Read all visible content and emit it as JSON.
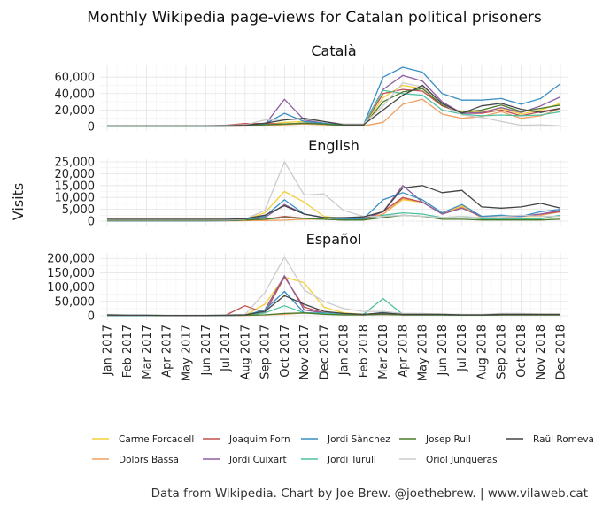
{
  "chart_data": {
    "type": "line",
    "title": "Monthly Wikipedia page-views for Catalan political prisoners",
    "ylabel": "Visits",
    "xlabel": "",
    "caption": "Data from Wikipedia. Chart by Joe Brew. @joethebrew. | www.vilaweb.cat",
    "grid": true,
    "legend_position": "bottom",
    "x": [
      "Jan 2017",
      "Feb 2017",
      "Mar 2017",
      "Apr 2017",
      "May 2017",
      "Jun 2017",
      "Jul 2017",
      "Aug 2017",
      "Sep 2017",
      "Oct 2017",
      "Nov 2017",
      "Dec 2017",
      "Jan 2018",
      "Feb 2018",
      "Mar 2018",
      "Apr 2018",
      "May 2018",
      "Jun 2018",
      "Jul 2018",
      "Aug 2018",
      "Sep 2018",
      "Oct 2018",
      "Nov 2018",
      "Dec 2018"
    ],
    "legend": [
      {
        "name": "Carme Forcadell",
        "color": "#f2d13a"
      },
      {
        "name": "Dolors Bassa",
        "color": "#f0a060"
      },
      {
        "name": "Joaquim Forn",
        "color": "#c0504d"
      },
      {
        "name": "Jordi Cuixart",
        "color": "#8e5ea2"
      },
      {
        "name": "Jordi Sànchez",
        "color": "#3a8fc4"
      },
      {
        "name": "Jordi Turull",
        "color": "#4fc1a0"
      },
      {
        "name": "Josep Rull",
        "color": "#4a7a2a"
      },
      {
        "name": "Oriol Junqueras",
        "color": "#cccccc"
      },
      {
        "name": "Raül Romeva",
        "color": "#444444"
      }
    ],
    "panels": [
      {
        "title": "Català",
        "ylim": [
          0,
          72000
        ],
        "yticks": [
          0,
          20000,
          40000,
          60000
        ],
        "ytick_labels": [
          "0",
          "20,000",
          "40,000",
          "60,000"
        ],
        "series": [
          {
            "name": "Carme Forcadell",
            "values": [
              500,
              500,
              500,
              500,
              500,
              500,
              600,
              800,
              2000,
              5000,
              6000,
              3000,
              1000,
              1000,
              35000,
              50000,
              46000,
              25000,
              18000,
              18000,
              22000,
              15000,
              20000,
              28000
            ]
          },
          {
            "name": "Dolors Bassa",
            "values": [
              200,
              200,
              200,
              200,
              200,
              200,
              300,
              500,
              1000,
              2000,
              3000,
              2000,
              800,
              800,
              5000,
              27000,
              33000,
              15000,
              10000,
              12000,
              18000,
              10000,
              13000,
              22000
            ]
          },
          {
            "name": "Joaquim Forn",
            "values": [
              500,
              500,
              500,
              500,
              500,
              500,
              1500,
              3500,
              3500,
              3000,
              4000,
              3000,
              1000,
              1000,
              40000,
              45000,
              43000,
              25000,
              16000,
              16000,
              20000,
              13000,
              18000,
              22000
            ]
          },
          {
            "name": "Jordi Cuixart",
            "values": [
              300,
              300,
              300,
              300,
              300,
              300,
              400,
              800,
              2000,
              33000,
              8000,
              4000,
              1500,
              1500,
              45000,
              62000,
              55000,
              30000,
              16000,
              17000,
              23000,
              17000,
              25000,
              36000
            ]
          },
          {
            "name": "Jordi Sànchez",
            "values": [
              300,
              300,
              300,
              300,
              300,
              300,
              500,
              1000,
              3000,
              16000,
              6000,
              4000,
              1500,
              1500,
              60000,
              72000,
              66000,
              40000,
              32000,
              32000,
              34000,
              27000,
              34000,
              52000
            ]
          },
          {
            "name": "Jordi Turull",
            "values": [
              400,
              400,
              400,
              400,
              400,
              400,
              500,
              800,
              2000,
              3000,
              4000,
              3000,
              1000,
              1000,
              44000,
              40000,
              38000,
              20000,
              15000,
              13000,
              14000,
              13000,
              14000,
              18000
            ]
          },
          {
            "name": "Josep Rull",
            "values": [
              400,
              400,
              400,
              400,
              400,
              400,
              500,
              800,
              2000,
              3000,
              4000,
              3000,
              1000,
              1000,
              30000,
              42000,
              46000,
              26000,
              17000,
              20000,
              26000,
              18000,
              22000,
              26000
            ]
          },
          {
            "name": "Oriol Junqueras",
            "values": [
              1000,
              1000,
              1000,
              1000,
              1000,
              1000,
              1500,
              2000,
              8000,
              9000,
              9000,
              6000,
              3000,
              3000,
              25000,
              53000,
              48000,
              28000,
              14000,
              11000,
              6000,
              1500,
              2000,
              800
            ]
          },
          {
            "name": "Raül Romeva",
            "values": [
              800,
              800,
              800,
              800,
              800,
              800,
              1000,
              1500,
              4000,
              8000,
              10000,
              6000,
              2000,
              2000,
              20000,
              38000,
              50000,
              28000,
              16000,
              25000,
              28000,
              21000,
              17000,
              22000
            ]
          }
        ]
      },
      {
        "title": "English",
        "ylim": [
          0,
          25000
        ],
        "yticks": [
          0,
          5000,
          10000,
          15000,
          20000,
          25000
        ],
        "ytick_labels": [
          "0",
          "5,000",
          "10,000",
          "15,000",
          "20,000",
          "25,000"
        ],
        "series": [
          {
            "name": "Carme Forcadell",
            "values": [
              300,
              300,
              300,
              300,
              300,
              300,
              400,
              600,
              3500,
              12500,
              8000,
              2000,
              1000,
              800,
              3000,
              9000,
              8000,
              3000,
              6500,
              2000,
              2000,
              2000,
              2000,
              2000
            ]
          },
          {
            "name": "Dolors Bassa",
            "values": [
              100,
              100,
              100,
              100,
              100,
              100,
              100,
              200,
              300,
              400,
              800,
              800,
              500,
              500,
              3000,
              9500,
              8000,
              3000,
              6000,
              1500,
              2000,
              2000,
              2500,
              4000
            ]
          },
          {
            "name": "Joaquim Forn",
            "values": [
              200,
              200,
              200,
              200,
              200,
              200,
              300,
              500,
              800,
              2000,
              1200,
              800,
              500,
              500,
              4000,
              10000,
              8000,
              3000,
              5500,
              2000,
              2000,
              2000,
              3000,
              4000
            ]
          },
          {
            "name": "Jordi Cuixart",
            "values": [
              100,
              100,
              100,
              100,
              100,
              100,
              200,
              500,
              1500,
              7000,
              3000,
              1500,
              1000,
              1000,
              4000,
              15000,
              8000,
              3000,
              5500,
              2000,
              2000,
              2000,
              3000,
              4500
            ]
          },
          {
            "name": "Jordi Sànchez",
            "values": [
              100,
              100,
              100,
              100,
              100,
              100,
              200,
              500,
              2000,
              9000,
              3000,
              1500,
              1000,
              1000,
              9000,
              12000,
              9000,
              3500,
              7000,
              2000,
              2500,
              2000,
              4000,
              5000
            ]
          },
          {
            "name": "Jordi Turull",
            "values": [
              200,
              200,
              200,
              200,
              200,
              200,
              300,
              500,
              800,
              1500,
              1200,
              800,
              500,
              500,
              2500,
              3500,
              3000,
              1500,
              2000,
              1000,
              1000,
              1000,
              1000,
              2500
            ]
          },
          {
            "name": "Josep Rull",
            "values": [
              200,
              200,
              200,
              200,
              200,
              200,
              300,
              500,
              800,
              1500,
              1200,
              800,
              500,
              500,
              1500,
              2500,
              2000,
              800,
              800,
              500,
              500,
              500,
              500,
              800
            ]
          },
          {
            "name": "Oriol Junqueras",
            "values": [
              500,
              500,
              500,
              500,
              500,
              500,
              500,
              800,
              4500,
              25000,
              11000,
              11500,
              4500,
              2000,
              2000,
              2500,
              2000,
              1500,
              2000,
              1500,
              2000,
              2500,
              2000,
              2000
            ]
          },
          {
            "name": "Raül Romeva",
            "values": [
              800,
              800,
              800,
              800,
              800,
              800,
              800,
              1000,
              2500,
              6500,
              3000,
              1500,
              1500,
              1800,
              4000,
              14000,
              15000,
              12000,
              13000,
              6000,
              5500,
              6000,
              7500,
              5500
            ]
          }
        ]
      },
      {
        "title": "Español",
        "ylim": [
          0,
          210000
        ],
        "yticks": [
          0,
          50000,
          100000,
          150000,
          200000
        ],
        "ytick_labels": [
          "0",
          "50,000",
          "100,000",
          "150,000",
          "200,000"
        ],
        "series": [
          {
            "name": "Carme Forcadell",
            "values": [
              500,
              500,
              500,
              500,
              500,
              500,
              1000,
              2000,
              40000,
              135000,
              115000,
              30000,
              10000,
              5000,
              5000,
              3000,
              3000,
              3000,
              2000,
              2000,
              3000,
              3000,
              3000,
              3000
            ]
          },
          {
            "name": "Dolors Bassa",
            "values": [
              200,
              200,
              200,
              200,
              200,
              200,
              500,
              1000,
              3000,
              5000,
              10000,
              8000,
              3000,
              3000,
              5000,
              3000,
              3000,
              3000,
              2000,
              2000,
              3000,
              3000,
              3000,
              3000
            ]
          },
          {
            "name": "Joaquim Forn",
            "values": [
              500,
              500,
              500,
              500,
              500,
              500,
              1500,
              35000,
              10000,
              135000,
              30000,
              10000,
              5000,
              3000,
              5000,
              3000,
              3000,
              3000,
              2000,
              2000,
              3000,
              3000,
              3000,
              3000
            ]
          },
          {
            "name": "Jordi Cuixart",
            "values": [
              300,
              300,
              300,
              300,
              300,
              300,
              1000,
              2000,
              20000,
              140000,
              20000,
              10000,
              5000,
              3000,
              5000,
              3000,
              3000,
              3000,
              2000,
              2000,
              3000,
              3000,
              3000,
              3000
            ]
          },
          {
            "name": "Jordi Sànchez",
            "values": [
              300,
              300,
              300,
              300,
              300,
              300,
              1000,
              2000,
              20000,
              85000,
              10000,
              10000,
              5000,
              3000,
              12000,
              3000,
              3000,
              3000,
              2000,
              2000,
              3000,
              3000,
              3000,
              3000
            ]
          },
          {
            "name": "Jordi Turull",
            "values": [
              2000,
              2000,
              2000,
              1000,
              1000,
              1000,
              2000,
              2000,
              10000,
              35000,
              10000,
              8000,
              5000,
              5000,
              60000,
              5000,
              3000,
              3000,
              2000,
              2000,
              5000,
              5000,
              5000,
              5000
            ]
          },
          {
            "name": "Josep Rull",
            "values": [
              1500,
              1500,
              1500,
              1000,
              1000,
              1000,
              1500,
              2000,
              3000,
              8000,
              10000,
              5000,
              3000,
              3000,
              5000,
              3000,
              3000,
              3000,
              2000,
              2000,
              3000,
              3000,
              3000,
              3000
            ]
          },
          {
            "name": "Oriol Junqueras",
            "values": [
              5000,
              3000,
              3000,
              2000,
              2000,
              2000,
              3000,
              5000,
              80000,
              205000,
              90000,
              50000,
              25000,
              15000,
              15000,
              8000,
              8000,
              6000,
              5000,
              5000,
              8000,
              8000,
              6000,
              6000
            ]
          },
          {
            "name": "Raül Romeva",
            "values": [
              3000,
              2000,
              2000,
              1000,
              1000,
              1000,
              2000,
              3000,
              15000,
              70000,
              40000,
              15000,
              8000,
              5000,
              10000,
              5000,
              5000,
              5000,
              3000,
              3000,
              5000,
              5000,
              5000,
              5000
            ]
          }
        ]
      }
    ]
  }
}
